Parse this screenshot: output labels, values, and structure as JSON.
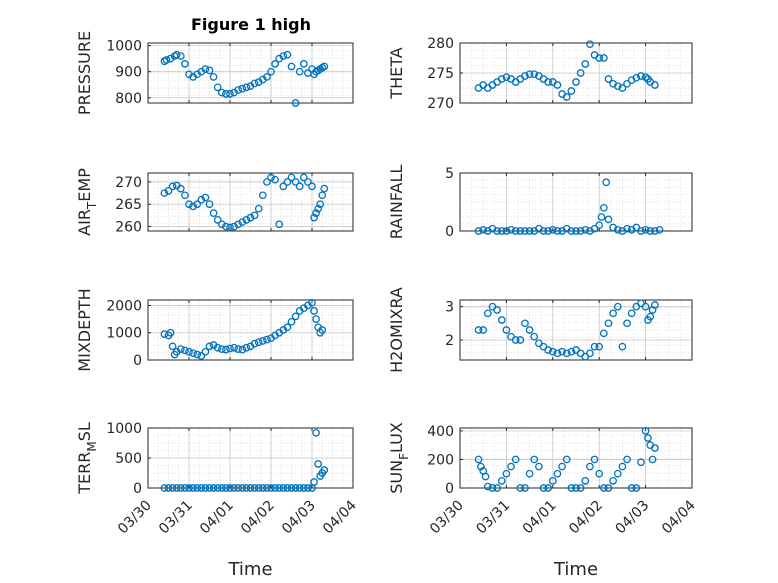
{
  "figure_title": "Figure 1 high",
  "x_axis_label": "Time",
  "marker_color": "#0072BD",
  "chart_data": [
    {
      "type": "scatter",
      "ylabel": "PRESSURE",
      "ylim": [
        780,
        1010
      ],
      "yticks": [
        800,
        900,
        1000
      ],
      "xlim": [
        0,
        5
      ],
      "grid": true,
      "x": [
        0.4,
        0.45,
        0.55,
        0.65,
        0.7,
        0.8,
        0.9,
        1.0,
        1.1,
        1.2,
        1.3,
        1.4,
        1.5,
        1.6,
        1.7,
        1.8,
        1.9,
        2.0,
        2.1,
        2.2,
        2.3,
        2.4,
        2.5,
        2.6,
        2.7,
        2.8,
        2.9,
        3.0,
        3.1,
        3.2,
        3.3,
        3.4,
        3.5,
        3.6,
        3.7,
        3.8,
        3.9,
        4.0,
        4.05,
        4.1,
        4.15,
        4.2,
        4.25,
        4.3
      ],
      "y": [
        940,
        945,
        950,
        960,
        965,
        960,
        930,
        890,
        880,
        890,
        900,
        910,
        905,
        880,
        840,
        820,
        815,
        815,
        820,
        830,
        835,
        840,
        845,
        855,
        860,
        870,
        880,
        900,
        930,
        950,
        960,
        965,
        920,
        780,
        900,
        930,
        895,
        910,
        890,
        900,
        905,
        910,
        915,
        920
      ]
    },
    {
      "type": "scatter",
      "ylabel": "THETA",
      "ylim": [
        270,
        280
      ],
      "yticks": [
        270,
        275,
        280
      ],
      "xlim": [
        0,
        5
      ],
      "grid": true,
      "x": [
        0.4,
        0.5,
        0.6,
        0.7,
        0.8,
        0.9,
        1.0,
        1.1,
        1.2,
        1.3,
        1.4,
        1.5,
        1.6,
        1.7,
        1.8,
        1.9,
        2.0,
        2.1,
        2.2,
        2.3,
        2.4,
        2.5,
        2.6,
        2.7,
        2.8,
        2.9,
        3.0,
        3.1,
        3.2,
        3.3,
        3.4,
        3.5,
        3.6,
        3.7,
        3.8,
        3.9,
        4.0,
        4.05,
        4.1,
        4.2
      ],
      "y": [
        272.5,
        273,
        272.5,
        273,
        273.5,
        274,
        274.3,
        274,
        273.5,
        274,
        274.5,
        274.8,
        274.8,
        274.5,
        274,
        273.5,
        273.5,
        273,
        271.5,
        271,
        272,
        273.5,
        275,
        276.5,
        279.8,
        278,
        277.5,
        277.5,
        274,
        273.2,
        272.8,
        272.5,
        273.2,
        273.8,
        274.2,
        274.5,
        274.3,
        274,
        273.5,
        273
      ]
    },
    {
      "type": "scatter",
      "ylabel": "AIR_TEMP",
      "ylim": [
        259,
        272
      ],
      "yticks": [
        260,
        265,
        270
      ],
      "xlim": [
        0,
        5
      ],
      "grid": true,
      "x": [
        0.4,
        0.5,
        0.6,
        0.7,
        0.8,
        0.9,
        1.0,
        1.1,
        1.2,
        1.3,
        1.4,
        1.5,
        1.6,
        1.7,
        1.8,
        1.9,
        2.0,
        2.1,
        2.2,
        2.3,
        2.4,
        2.5,
        2.6,
        2.7,
        2.8,
        2.9,
        3.0,
        3.1,
        3.2,
        3.3,
        3.4,
        3.5,
        3.6,
        3.7,
        3.8,
        3.9,
        4.0,
        4.05,
        4.1,
        4.15,
        4.2,
        4.25,
        4.3
      ],
      "y": [
        267.5,
        268,
        269,
        269.2,
        268.5,
        267,
        265,
        264.5,
        265,
        266,
        266.5,
        265,
        263,
        261.5,
        260.5,
        260,
        259.8,
        260,
        260.5,
        261,
        261.5,
        262,
        262.5,
        264,
        267,
        270,
        271,
        270.5,
        260.5,
        269,
        270,
        271,
        270,
        269,
        271,
        270,
        269,
        262,
        263,
        264,
        265,
        267,
        268.5
      ]
    },
    {
      "type": "scatter",
      "ylabel": "RAINFALL",
      "ylim": [
        0,
        5
      ],
      "yticks": [
        0,
        5
      ],
      "xlim": [
        0,
        5
      ],
      "grid": true,
      "x": [
        0.4,
        0.5,
        0.6,
        0.7,
        0.8,
        0.9,
        1.0,
        1.1,
        1.2,
        1.3,
        1.4,
        1.5,
        1.6,
        1.7,
        1.8,
        1.9,
        2.0,
        2.1,
        2.2,
        2.3,
        2.4,
        2.5,
        2.6,
        2.7,
        2.8,
        2.9,
        3.0,
        3.05,
        3.1,
        3.15,
        3.2,
        3.3,
        3.4,
        3.5,
        3.6,
        3.7,
        3.8,
        3.9,
        4.0,
        4.1,
        4.2,
        4.3
      ],
      "y": [
        0,
        0.1,
        0,
        0.2,
        0,
        0,
        0,
        0.1,
        0,
        0,
        0,
        0,
        0,
        0.2,
        0,
        0,
        0.1,
        0,
        0,
        0.2,
        0,
        0,
        0,
        0.1,
        0,
        0.2,
        0.5,
        1.2,
        2.0,
        4.2,
        1.0,
        0.3,
        0.1,
        0,
        0.2,
        0.1,
        0.3,
        0,
        0.1,
        0,
        0,
        0.1
      ]
    },
    {
      "type": "scatter",
      "ylabel": "MIXDEPTH",
      "ylim": [
        0,
        2200
      ],
      "yticks": [
        0,
        1000,
        2000
      ],
      "xlim": [
        0,
        5
      ],
      "grid": true,
      "x": [
        0.4,
        0.5,
        0.55,
        0.6,
        0.65,
        0.7,
        0.8,
        0.9,
        1.0,
        1.1,
        1.2,
        1.3,
        1.4,
        1.5,
        1.6,
        1.7,
        1.8,
        1.9,
        2.0,
        2.1,
        2.2,
        2.3,
        2.4,
        2.5,
        2.6,
        2.7,
        2.8,
        2.9,
        3.0,
        3.1,
        3.2,
        3.3,
        3.4,
        3.5,
        3.6,
        3.7,
        3.8,
        3.9,
        4.0,
        4.05,
        4.1,
        4.15,
        4.2,
        4.25
      ],
      "y": [
        950,
        900,
        1000,
        500,
        200,
        300,
        400,
        350,
        300,
        250,
        200,
        150,
        300,
        500,
        550,
        450,
        400,
        380,
        420,
        450,
        400,
        380,
        450,
        500,
        600,
        650,
        700,
        750,
        800,
        900,
        1000,
        1100,
        1200,
        1400,
        1600,
        1800,
        1900,
        2000,
        2100,
        1800,
        1500,
        1200,
        1000,
        1100
      ]
    },
    {
      "type": "scatter",
      "ylabel": "H2OMIXRA",
      "ylim": [
        1.4,
        3.2
      ],
      "yticks": [
        2,
        3
      ],
      "xlim": [
        0,
        5
      ],
      "grid": true,
      "x": [
        0.4,
        0.5,
        0.6,
        0.7,
        0.8,
        0.9,
        1.0,
        1.1,
        1.2,
        1.3,
        1.4,
        1.5,
        1.6,
        1.7,
        1.8,
        1.9,
        2.0,
        2.1,
        2.2,
        2.3,
        2.4,
        2.5,
        2.6,
        2.7,
        2.8,
        2.9,
        3.0,
        3.1,
        3.2,
        3.3,
        3.4,
        3.5,
        3.6,
        3.7,
        3.8,
        3.9,
        4.0,
        4.05,
        4.1,
        4.15,
        4.2
      ],
      "y": [
        2.3,
        2.3,
        2.8,
        3.0,
        2.9,
        2.6,
        2.3,
        2.1,
        2.0,
        2.0,
        2.5,
        2.3,
        2.1,
        1.9,
        1.8,
        1.7,
        1.65,
        1.6,
        1.65,
        1.6,
        1.65,
        1.7,
        1.6,
        1.5,
        1.6,
        1.8,
        1.8,
        2.2,
        2.5,
        2.8,
        3.0,
        1.8,
        2.5,
        2.8,
        3.0,
        3.1,
        3.0,
        2.6,
        2.7,
        2.9,
        3.05
      ]
    },
    {
      "type": "scatter",
      "ylabel": "TERR_MSL",
      "ylim": [
        0,
        1000
      ],
      "yticks": [
        0,
        500,
        1000
      ],
      "xlim": [
        0,
        5
      ],
      "grid": true,
      "x": [
        0.4,
        0.5,
        0.6,
        0.7,
        0.8,
        0.9,
        1.0,
        1.1,
        1.2,
        1.3,
        1.4,
        1.5,
        1.6,
        1.7,
        1.8,
        1.9,
        2.0,
        2.1,
        2.2,
        2.3,
        2.4,
        2.5,
        2.6,
        2.7,
        2.8,
        2.9,
        3.0,
        3.1,
        3.2,
        3.3,
        3.4,
        3.5,
        3.6,
        3.7,
        3.8,
        3.9,
        4.0,
        4.05,
        4.1,
        4.15,
        4.2,
        4.25,
        4.3
      ],
      "y": [
        0,
        0,
        0,
        0,
        0,
        0,
        0,
        0,
        0,
        0,
        0,
        0,
        0,
        0,
        0,
        0,
        0,
        0,
        0,
        0,
        0,
        0,
        0,
        0,
        0,
        0,
        0,
        0,
        0,
        0,
        0,
        0,
        0,
        0,
        0,
        0,
        0,
        100,
        920,
        400,
        200,
        250,
        300
      ]
    },
    {
      "type": "scatter",
      "ylabel": "SUN_FLUX",
      "ylim": [
        0,
        420
      ],
      "yticks": [
        0,
        200,
        400
      ],
      "xlim": [
        0,
        5
      ],
      "grid": true,
      "x": [
        0.4,
        0.45,
        0.5,
        0.55,
        0.6,
        0.7,
        0.8,
        0.9,
        1.0,
        1.1,
        1.2,
        1.3,
        1.4,
        1.5,
        1.6,
        1.7,
        1.8,
        1.9,
        2.0,
        2.1,
        2.2,
        2.3,
        2.4,
        2.5,
        2.6,
        2.7,
        2.8,
        2.9,
        3.0,
        3.1,
        3.2,
        3.3,
        3.4,
        3.5,
        3.6,
        3.7,
        3.8,
        3.9,
        4.0,
        4.05,
        4.1,
        4.15,
        4.2
      ],
      "y": [
        200,
        150,
        120,
        80,
        10,
        0,
        0,
        50,
        100,
        150,
        200,
        0,
        0,
        100,
        200,
        150,
        0,
        0,
        50,
        100,
        150,
        200,
        0,
        0,
        0,
        50,
        150,
        200,
        100,
        0,
        0,
        50,
        100,
        150,
        200,
        0,
        0,
        180,
        400,
        350,
        300,
        200,
        280
      ]
    }
  ],
  "x_tick_labels": [
    "03/30",
    "03/31",
    "04/01",
    "04/02",
    "04/03",
    "04/04"
  ],
  "x_tick_values": [
    0,
    1,
    2,
    3,
    4,
    5
  ]
}
